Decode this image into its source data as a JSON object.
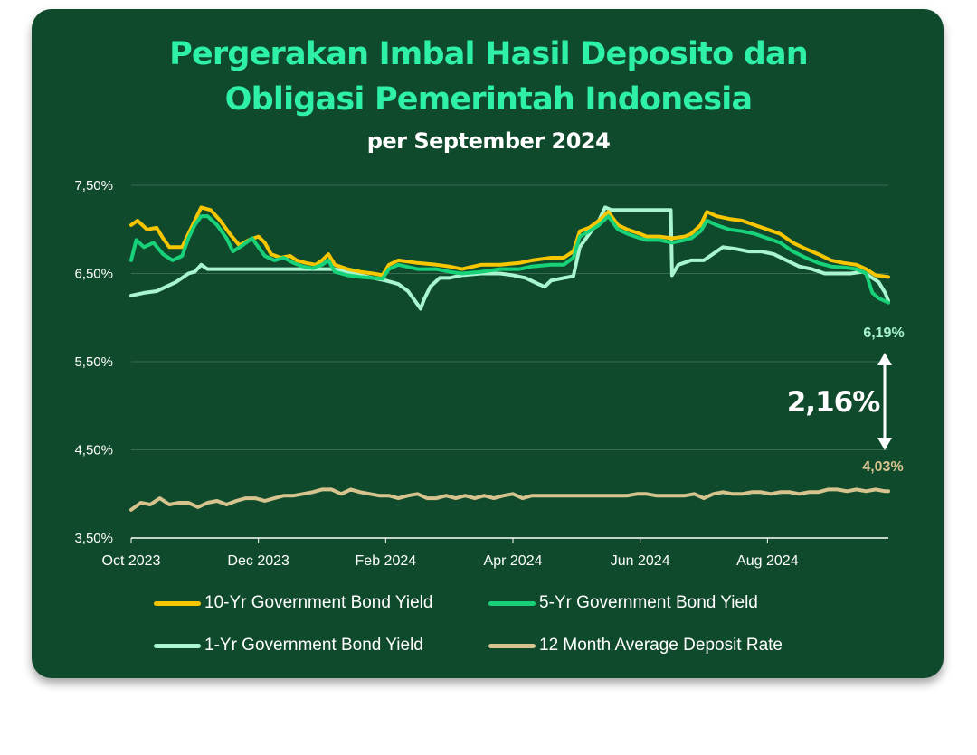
{
  "title_line1": "Pergerakan Imbal Hasil Deposito dan",
  "title_line2": "Obligasi Pemerintah Indonesia",
  "subtitle": "per September 2024",
  "colors": {
    "background": "#0f4a2c",
    "title": "#2ef0a6",
    "ten_yr": "#f7c600",
    "five_yr": "#18d27a",
    "one_yr": "#a8f5cf",
    "deposit": "#d6c38e"
  },
  "chart_data": {
    "type": "line",
    "x_ticks": [
      "Oct 2023",
      "Dec 2023",
      "Feb 2024",
      "Apr 2024",
      "Jun 2024",
      "Aug 2024"
    ],
    "y_ticks": [
      "7,50%",
      "6,50%",
      "5,50%",
      "4,50%",
      "3,50%"
    ],
    "ylim": [
      3.5,
      7.5
    ],
    "x_unit": "months since Oct 2023",
    "xlim": [
      0,
      11.9
    ],
    "series": [
      {
        "name": "10-Yr Government Bond Yield",
        "points": [
          [
            0,
            7.05
          ],
          [
            0.1,
            7.1
          ],
          [
            0.25,
            7.0
          ],
          [
            0.4,
            7.02
          ],
          [
            0.5,
            6.9
          ],
          [
            0.6,
            6.8
          ],
          [
            0.8,
            6.8
          ],
          [
            0.9,
            6.95
          ],
          [
            1.0,
            7.1
          ],
          [
            1.1,
            7.25
          ],
          [
            1.25,
            7.22
          ],
          [
            1.4,
            7.1
          ],
          [
            1.55,
            6.95
          ],
          [
            1.7,
            6.82
          ],
          [
            1.85,
            6.88
          ],
          [
            2.0,
            6.92
          ],
          [
            2.1,
            6.85
          ],
          [
            2.2,
            6.72
          ],
          [
            2.35,
            6.68
          ],
          [
            2.5,
            6.7
          ],
          [
            2.6,
            6.65
          ],
          [
            2.75,
            6.62
          ],
          [
            2.9,
            6.6
          ],
          [
            3.0,
            6.65
          ],
          [
            3.1,
            6.72
          ],
          [
            3.2,
            6.6
          ],
          [
            3.4,
            6.55
          ],
          [
            3.6,
            6.52
          ],
          [
            3.8,
            6.5
          ],
          [
            3.95,
            6.48
          ],
          [
            4.05,
            6.6
          ],
          [
            4.2,
            6.65
          ],
          [
            4.5,
            6.62
          ],
          [
            4.8,
            6.6
          ],
          [
            5.0,
            6.58
          ],
          [
            5.2,
            6.55
          ],
          [
            5.5,
            6.6
          ],
          [
            5.8,
            6.6
          ],
          [
            6.1,
            6.62
          ],
          [
            6.3,
            6.65
          ],
          [
            6.6,
            6.68
          ],
          [
            6.8,
            6.68
          ],
          [
            6.95,
            6.75
          ],
          [
            7.05,
            6.98
          ],
          [
            7.2,
            7.02
          ],
          [
            7.35,
            7.1
          ],
          [
            7.5,
            7.2
          ],
          [
            7.65,
            7.05
          ],
          [
            7.8,
            7.0
          ],
          [
            8.0,
            6.95
          ],
          [
            8.1,
            6.92
          ],
          [
            8.3,
            6.92
          ],
          [
            8.5,
            6.9
          ],
          [
            8.7,
            6.92
          ],
          [
            8.8,
            6.95
          ],
          [
            8.95,
            7.05
          ],
          [
            9.05,
            7.2
          ],
          [
            9.2,
            7.15
          ],
          [
            9.4,
            7.12
          ],
          [
            9.6,
            7.1
          ],
          [
            9.8,
            7.05
          ],
          [
            10.0,
            7.0
          ],
          [
            10.2,
            6.95
          ],
          [
            10.4,
            6.85
          ],
          [
            10.6,
            6.78
          ],
          [
            10.8,
            6.72
          ],
          [
            11.0,
            6.65
          ],
          [
            11.2,
            6.62
          ],
          [
            11.4,
            6.6
          ],
          [
            11.55,
            6.55
          ],
          [
            11.7,
            6.48
          ],
          [
            11.9,
            6.46
          ]
        ]
      },
      {
        "name": "5-Yr Government Bond Yield",
        "points": [
          [
            0,
            6.65
          ],
          [
            0.08,
            6.88
          ],
          [
            0.2,
            6.8
          ],
          [
            0.35,
            6.85
          ],
          [
            0.5,
            6.72
          ],
          [
            0.65,
            6.65
          ],
          [
            0.8,
            6.7
          ],
          [
            0.9,
            6.9
          ],
          [
            1.0,
            7.05
          ],
          [
            1.1,
            7.15
          ],
          [
            1.2,
            7.15
          ],
          [
            1.35,
            7.05
          ],
          [
            1.5,
            6.9
          ],
          [
            1.6,
            6.75
          ],
          [
            1.75,
            6.82
          ],
          [
            1.9,
            6.9
          ],
          [
            2.0,
            6.8
          ],
          [
            2.1,
            6.7
          ],
          [
            2.25,
            6.65
          ],
          [
            2.4,
            6.68
          ],
          [
            2.55,
            6.62
          ],
          [
            2.7,
            6.58
          ],
          [
            2.85,
            6.56
          ],
          [
            3.0,
            6.6
          ],
          [
            3.1,
            6.65
          ],
          [
            3.2,
            6.52
          ],
          [
            3.4,
            6.48
          ],
          [
            3.6,
            6.46
          ],
          [
            3.8,
            6.45
          ],
          [
            3.95,
            6.44
          ],
          [
            4.05,
            6.55
          ],
          [
            4.2,
            6.6
          ],
          [
            4.5,
            6.55
          ],
          [
            4.8,
            6.55
          ],
          [
            5.0,
            6.52
          ],
          [
            5.2,
            6.5
          ],
          [
            5.5,
            6.52
          ],
          [
            5.8,
            6.55
          ],
          [
            6.1,
            6.55
          ],
          [
            6.3,
            6.58
          ],
          [
            6.6,
            6.6
          ],
          [
            6.8,
            6.6
          ],
          [
            6.95,
            6.68
          ],
          [
            7.05,
            6.92
          ],
          [
            7.2,
            6.98
          ],
          [
            7.35,
            7.05
          ],
          [
            7.5,
            7.15
          ],
          [
            7.65,
            7.0
          ],
          [
            7.8,
            6.95
          ],
          [
            8.0,
            6.9
          ],
          [
            8.1,
            6.88
          ],
          [
            8.3,
            6.88
          ],
          [
            8.5,
            6.85
          ],
          [
            8.7,
            6.88
          ],
          [
            8.8,
            6.9
          ],
          [
            8.95,
            6.98
          ],
          [
            9.05,
            7.1
          ],
          [
            9.2,
            7.05
          ],
          [
            9.4,
            7.0
          ],
          [
            9.6,
            6.98
          ],
          [
            9.8,
            6.95
          ],
          [
            10.0,
            6.9
          ],
          [
            10.2,
            6.85
          ],
          [
            10.4,
            6.75
          ],
          [
            10.6,
            6.68
          ],
          [
            10.8,
            6.62
          ],
          [
            11.0,
            6.58
          ],
          [
            11.2,
            6.57
          ],
          [
            11.4,
            6.55
          ],
          [
            11.55,
            6.5
          ],
          [
            11.65,
            6.28
          ],
          [
            11.75,
            6.22
          ],
          [
            11.9,
            6.17
          ]
        ]
      },
      {
        "name": "1-Yr Government Bond Yield",
        "points": [
          [
            0,
            6.25
          ],
          [
            0.2,
            6.28
          ],
          [
            0.4,
            6.3
          ],
          [
            0.55,
            6.35
          ],
          [
            0.7,
            6.4
          ],
          [
            0.8,
            6.45
          ],
          [
            0.9,
            6.5
          ],
          [
            1.0,
            6.52
          ],
          [
            1.1,
            6.6
          ],
          [
            1.2,
            6.55
          ],
          [
            1.4,
            6.55
          ],
          [
            1.6,
            6.55
          ],
          [
            1.8,
            6.55
          ],
          [
            2.0,
            6.55
          ],
          [
            2.2,
            6.55
          ],
          [
            2.4,
            6.55
          ],
          [
            2.6,
            6.55
          ],
          [
            2.8,
            6.55
          ],
          [
            3.0,
            6.55
          ],
          [
            3.2,
            6.55
          ],
          [
            3.4,
            6.52
          ],
          [
            3.6,
            6.48
          ],
          [
            3.8,
            6.45
          ],
          [
            4.0,
            6.42
          ],
          [
            4.1,
            6.4
          ],
          [
            4.2,
            6.38
          ],
          [
            4.35,
            6.3
          ],
          [
            4.5,
            6.15
          ],
          [
            4.55,
            6.1
          ],
          [
            4.6,
            6.2
          ],
          [
            4.7,
            6.35
          ],
          [
            4.85,
            6.45
          ],
          [
            5.0,
            6.45
          ],
          [
            5.2,
            6.48
          ],
          [
            5.5,
            6.5
          ],
          [
            5.8,
            6.5
          ],
          [
            6.0,
            6.48
          ],
          [
            6.2,
            6.45
          ],
          [
            6.4,
            6.38
          ],
          [
            6.5,
            6.35
          ],
          [
            6.6,
            6.42
          ],
          [
            6.8,
            6.45
          ],
          [
            6.95,
            6.47
          ],
          [
            7.05,
            6.8
          ],
          [
            7.15,
            6.9
          ],
          [
            7.25,
            7.0
          ],
          [
            7.35,
            7.1
          ],
          [
            7.45,
            7.25
          ],
          [
            7.55,
            7.22
          ],
          [
            7.8,
            7.22
          ],
          [
            8.0,
            7.22
          ],
          [
            8.2,
            7.22
          ],
          [
            8.4,
            7.22
          ],
          [
            8.48,
            7.22
          ],
          [
            8.5,
            6.48
          ],
          [
            8.6,
            6.6
          ],
          [
            8.8,
            6.65
          ],
          [
            9.0,
            6.65
          ],
          [
            9.1,
            6.7
          ],
          [
            9.3,
            6.8
          ],
          [
            9.5,
            6.78
          ],
          [
            9.7,
            6.75
          ],
          [
            9.9,
            6.75
          ],
          [
            10.1,
            6.72
          ],
          [
            10.3,
            6.65
          ],
          [
            10.5,
            6.58
          ],
          [
            10.7,
            6.55
          ],
          [
            10.9,
            6.5
          ],
          [
            11.1,
            6.5
          ],
          [
            11.3,
            6.5
          ],
          [
            11.5,
            6.52
          ],
          [
            11.65,
            6.45
          ],
          [
            11.75,
            6.4
          ],
          [
            11.85,
            6.28
          ],
          [
            11.9,
            6.19
          ]
        ]
      },
      {
        "name": "12 Month Average Deposit Rate",
        "points": [
          [
            0,
            3.82
          ],
          [
            0.15,
            3.9
          ],
          [
            0.3,
            3.88
          ],
          [
            0.45,
            3.95
          ],
          [
            0.6,
            3.88
          ],
          [
            0.75,
            3.9
          ],
          [
            0.9,
            3.9
          ],
          [
            1.05,
            3.85
          ],
          [
            1.2,
            3.9
          ],
          [
            1.35,
            3.92
          ],
          [
            1.5,
            3.88
          ],
          [
            1.65,
            3.92
          ],
          [
            1.8,
            3.95
          ],
          [
            1.95,
            3.95
          ],
          [
            2.1,
            3.92
          ],
          [
            2.25,
            3.95
          ],
          [
            2.4,
            3.98
          ],
          [
            2.55,
            3.98
          ],
          [
            2.7,
            4.0
          ],
          [
            2.85,
            4.02
          ],
          [
            3.0,
            4.05
          ],
          [
            3.15,
            4.05
          ],
          [
            3.3,
            4.0
          ],
          [
            3.45,
            4.05
          ],
          [
            3.6,
            4.02
          ],
          [
            3.75,
            4.0
          ],
          [
            3.9,
            3.98
          ],
          [
            4.05,
            3.98
          ],
          [
            4.2,
            3.95
          ],
          [
            4.35,
            3.98
          ],
          [
            4.5,
            4.0
          ],
          [
            4.65,
            3.95
          ],
          [
            4.8,
            3.95
          ],
          [
            4.95,
            3.98
          ],
          [
            5.1,
            3.95
          ],
          [
            5.25,
            3.98
          ],
          [
            5.4,
            3.95
          ],
          [
            5.55,
            3.98
          ],
          [
            5.7,
            3.95
          ],
          [
            5.85,
            3.98
          ],
          [
            6.0,
            4.0
          ],
          [
            6.15,
            3.95
          ],
          [
            6.3,
            3.98
          ],
          [
            6.45,
            3.98
          ],
          [
            6.6,
            3.98
          ],
          [
            6.75,
            3.98
          ],
          [
            6.9,
            3.98
          ],
          [
            7.05,
            3.98
          ],
          [
            7.2,
            3.98
          ],
          [
            7.35,
            3.98
          ],
          [
            7.5,
            3.98
          ],
          [
            7.65,
            3.98
          ],
          [
            7.8,
            3.98
          ],
          [
            7.95,
            4.0
          ],
          [
            8.1,
            4.0
          ],
          [
            8.25,
            3.98
          ],
          [
            8.4,
            3.98
          ],
          [
            8.55,
            3.98
          ],
          [
            8.7,
            3.98
          ],
          [
            8.85,
            4.0
          ],
          [
            9.0,
            3.95
          ],
          [
            9.15,
            4.0
          ],
          [
            9.3,
            4.02
          ],
          [
            9.45,
            4.0
          ],
          [
            9.6,
            4.0
          ],
          [
            9.75,
            4.02
          ],
          [
            9.9,
            4.02
          ],
          [
            10.05,
            4.0
          ],
          [
            10.2,
            4.02
          ],
          [
            10.35,
            4.02
          ],
          [
            10.5,
            4.0
          ],
          [
            10.65,
            4.02
          ],
          [
            10.8,
            4.02
          ],
          [
            10.95,
            4.05
          ],
          [
            11.1,
            4.05
          ],
          [
            11.25,
            4.03
          ],
          [
            11.4,
            4.05
          ],
          [
            11.55,
            4.03
          ],
          [
            11.7,
            4.05
          ],
          [
            11.85,
            4.03
          ],
          [
            11.9,
            4.03
          ]
        ]
      }
    ],
    "annotations": {
      "end_1yr_label": "6,19%",
      "end_deposit_label": "4,03%",
      "spread_label": "2,16%"
    }
  }
}
